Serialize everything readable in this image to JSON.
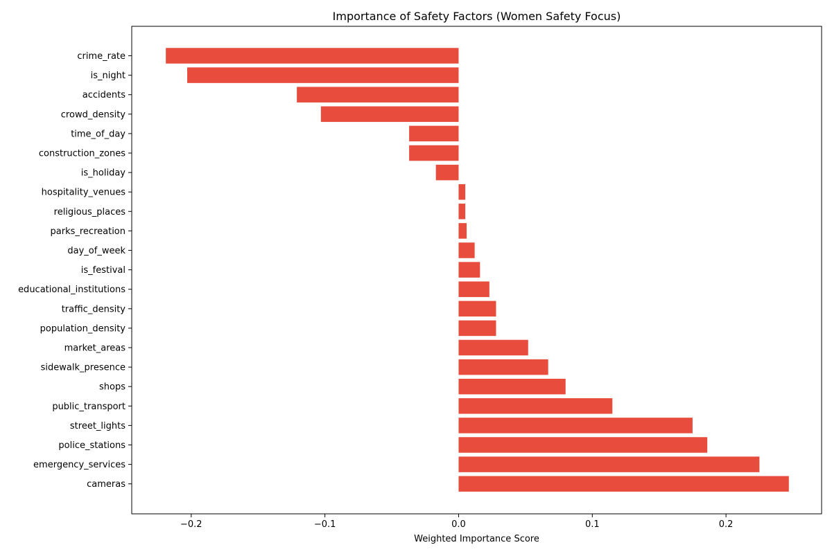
{
  "chart_data": {
    "type": "bar",
    "orientation": "horizontal",
    "title": "Importance of Safety Factors (Women Safety Focus)",
    "xlabel": "Weighted Importance Score",
    "ylabel": "",
    "xlim": [
      -0.2445,
      0.2715
    ],
    "xticks": [
      -0.2,
      -0.1,
      0.0,
      0.1,
      0.2
    ],
    "xtick_labels": [
      "−0.2",
      "−0.1",
      "0.0",
      "0.1",
      "0.2"
    ],
    "bar_color": "#e74c3c",
    "grid": false,
    "categories": [
      "crime_rate",
      "is_night",
      "accidents",
      "crowd_density",
      "time_of_day",
      "construction_zones",
      "is_holiday",
      "hospitality_venues",
      "religious_places",
      "parks_recreation",
      "day_of_week",
      "is_festival",
      "educational_institutions",
      "traffic_density",
      "population_density",
      "market_areas",
      "sidewalk_presence",
      "shops",
      "public_transport",
      "street_lights",
      "police_stations",
      "emergency_services",
      "cameras"
    ],
    "values": [
      -0.219,
      -0.203,
      -0.121,
      -0.103,
      -0.037,
      -0.037,
      -0.017,
      0.005,
      0.005,
      0.006,
      0.012,
      0.016,
      0.023,
      0.028,
      0.028,
      0.052,
      0.067,
      0.08,
      0.115,
      0.175,
      0.186,
      0.225,
      0.247
    ]
  }
}
